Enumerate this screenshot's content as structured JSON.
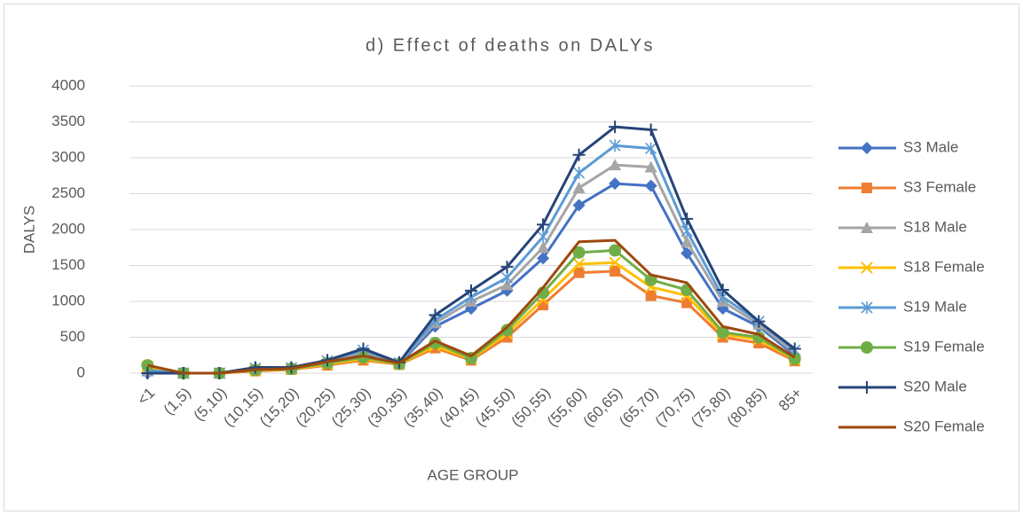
{
  "chart_data": {
    "type": "line",
    "title": "d) Effect of deaths on DALYs",
    "x_label": "AGE GROUP",
    "y_label": "DALYS",
    "categories": [
      "<1",
      "(1,5)",
      "(5,10)",
      "(10,15)",
      "(15,20)",
      "(20,25)",
      "(25,30)",
      "(30,35)",
      "(35,40)",
      "(40,45)",
      "(45,50)",
      "(50,55)",
      "(55,60)",
      "(60,65)",
      "(65,70)",
      "(70,75)",
      "(75,80)",
      "(80,85)",
      "85+"
    ],
    "ylim": [
      0,
      4000
    ],
    "yticks": [
      0,
      500,
      1000,
      1500,
      2000,
      2500,
      3000,
      3500,
      4000
    ],
    "grid": true,
    "legend": "right",
    "series": [
      {
        "name": "S3 Male",
        "color": "#4472c4",
        "marker": "diamond",
        "values": [
          0,
          0,
          0,
          50,
          60,
          150,
          280,
          130,
          650,
          900,
          1150,
          1600,
          2340,
          2640,
          2610,
          1670,
          900,
          650,
          250
        ]
      },
      {
        "name": "S3 Female",
        "color": "#ed7d31",
        "marker": "square",
        "values": [
          80,
          0,
          0,
          30,
          50,
          110,
          180,
          120,
          350,
          180,
          500,
          950,
          1400,
          1420,
          1080,
          980,
          500,
          420,
          170
        ]
      },
      {
        "name": "S18 Male",
        "color": "#a5a5a5",
        "marker": "triangle",
        "values": [
          30,
          0,
          0,
          60,
          70,
          160,
          300,
          140,
          700,
          1000,
          1230,
          1750,
          2580,
          2900,
          2870,
          1830,
          1000,
          680,
          280
        ]
      },
      {
        "name": "S18 Female",
        "color": "#ffc000",
        "marker": "x",
        "values": [
          90,
          0,
          0,
          40,
          55,
          125,
          200,
          125,
          380,
          200,
          550,
          1030,
          1520,
          1540,
          1200,
          1080,
          540,
          470,
          190
        ]
      },
      {
        "name": "S19 Male",
        "color": "#5b9bd5",
        "marker": "star",
        "values": [
          40,
          0,
          0,
          70,
          75,
          170,
          320,
          145,
          740,
          1060,
          1330,
          1900,
          2790,
          3170,
          3130,
          1980,
          1060,
          720,
          320
        ]
      },
      {
        "name": "S19 Female",
        "color": "#70ad47",
        "marker": "circle",
        "values": [
          110,
          0,
          0,
          45,
          60,
          140,
          220,
          130,
          420,
          210,
          600,
          1120,
          1680,
          1710,
          1300,
          1160,
          570,
          500,
          200
        ]
      },
      {
        "name": "S20 Male",
        "color": "#264478",
        "marker": "plus",
        "values": [
          0,
          0,
          0,
          80,
          80,
          180,
          340,
          150,
          810,
          1150,
          1480,
          2070,
          3040,
          3430,
          3390,
          2150,
          1160,
          720,
          340
        ]
      },
      {
        "name": "S20 Female",
        "color": "#9e480e",
        "marker": "none",
        "values": [
          110,
          0,
          0,
          50,
          65,
          160,
          240,
          140,
          450,
          240,
          640,
          1190,
          1830,
          1850,
          1370,
          1260,
          650,
          540,
          220
        ]
      }
    ]
  }
}
